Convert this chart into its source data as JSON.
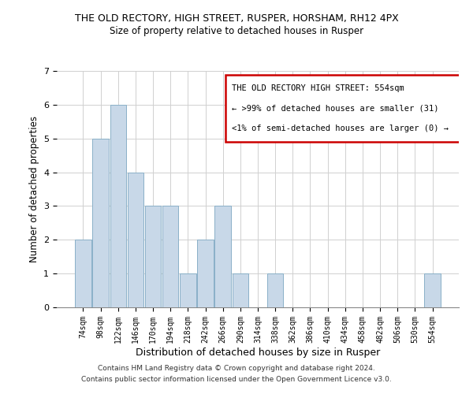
{
  "title": "THE OLD RECTORY, HIGH STREET, RUSPER, HORSHAM, RH12 4PX",
  "subtitle": "Size of property relative to detached houses in Rusper",
  "xlabel": "Distribution of detached houses by size in Rusper",
  "ylabel": "Number of detached properties",
  "bin_labels": [
    "74sqm",
    "98sqm",
    "122sqm",
    "146sqm",
    "170sqm",
    "194sqm",
    "218sqm",
    "242sqm",
    "266sqm",
    "290sqm",
    "314sqm",
    "338sqm",
    "362sqm",
    "386sqm",
    "410sqm",
    "434sqm",
    "458sqm",
    "482sqm",
    "506sqm",
    "530sqm",
    "554sqm"
  ],
  "bar_heights": [
    2,
    5,
    6,
    4,
    3,
    3,
    1,
    2,
    3,
    1,
    0,
    1,
    0,
    0,
    0,
    0,
    0,
    0,
    0,
    0,
    1
  ],
  "bar_color": "#c8d8e8",
  "bar_edge_color": "#8ab0c8",
  "ylim": [
    0,
    7
  ],
  "yticks": [
    0,
    1,
    2,
    3,
    4,
    5,
    6,
    7
  ],
  "legend_title": "THE OLD RECTORY HIGH STREET: 554sqm",
  "legend_line1": "← >99% of detached houses are smaller (31)",
  "legend_line2": "<1% of semi-detached houses are larger (0) →",
  "legend_box_color": "#ffffff",
  "legend_box_edge_color": "#cc0000",
  "footer_line1": "Contains HM Land Registry data © Crown copyright and database right 2024.",
  "footer_line2": "Contains public sector information licensed under the Open Government Licence v3.0.",
  "bg_color": "#ffffff",
  "grid_color": "#d0d0d0"
}
